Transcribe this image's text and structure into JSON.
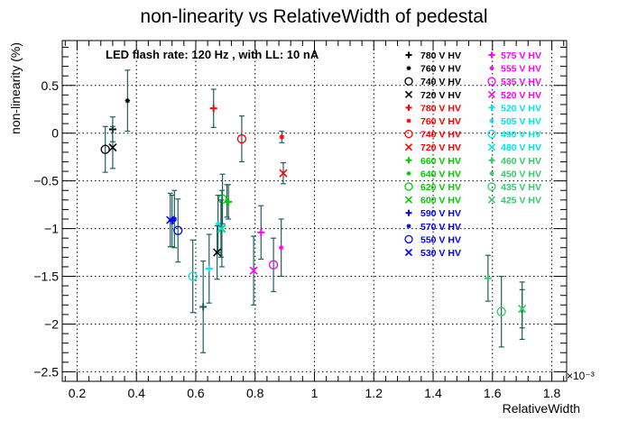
{
  "chart_data": {
    "type": "scatter",
    "title": "non-linearity vs RelativeWidth of pedestal",
    "xlabel": "RelativeWidth",
    "ylabel": "non-linearity (%)",
    "x_scale_label": "×10⁻³",
    "annotation": "LED flash rate: 120 Hz , with LL: 10 nA",
    "xlim": [
      0.15,
      1.85
    ],
    "ylim": [
      -2.6,
      0.97
    ],
    "x_ticks": [
      0.2,
      0.4,
      0.6,
      0.8,
      1.0,
      1.2,
      1.4,
      1.6,
      1.8
    ],
    "x_tick_labels": [
      "0.2",
      "0.4",
      "0.6",
      "0.8",
      "1",
      "1.2",
      "1.4",
      "1.6",
      "1.8"
    ],
    "y_ticks": [
      -2.5,
      -2,
      -1.5,
      -1,
      -0.5,
      0,
      0.5
    ],
    "y_tick_labels": [
      "−2.5",
      "−2",
      "−1.5",
      "−1",
      "−0.5",
      "0",
      "0.5"
    ],
    "grid": true,
    "legend_placement": "top-right",
    "error_bar_color": "#1f5f5a",
    "series": [
      {
        "name": "780 V HV",
        "color": "#000000",
        "marker": "plus",
        "x": 0.32,
        "y": 0.04,
        "yerr": 0.13
      },
      {
        "name": "760 V HV",
        "color": "#000000",
        "marker": "star",
        "x": 0.37,
        "y": 0.34,
        "yerr": 0.32
      },
      {
        "name": "740 V HV",
        "color": "#000000",
        "marker": "circle",
        "x": 0.295,
        "y": -0.17,
        "yerr": 0.24
      },
      {
        "name": "720 V HV",
        "color": "#000000",
        "marker": "cross",
        "x": 0.32,
        "y": -0.15,
        "yerr": 0.22
      },
      {
        "name": "780 V HV",
        "color": "#ff0000",
        "marker": "plus",
        "x": 0.66,
        "y": 0.26,
        "yerr": 0.2
      },
      {
        "name": "760 V HV",
        "color": "#ff0000",
        "marker": "star",
        "x": 0.89,
        "y": -0.04,
        "yerr": 0.06
      },
      {
        "name": "740 V HV",
        "color": "#ff0000",
        "marker": "circle",
        "x": 0.755,
        "y": -0.06,
        "yerr": 0.24
      },
      {
        "name": "720 V HV",
        "color": "#ff0000",
        "marker": "cross",
        "x": 0.895,
        "y": -0.42,
        "yerr": 0.11
      },
      {
        "name": "660 V HV",
        "color": "#00cc00",
        "marker": "plus",
        "x": 0.71,
        "y": -0.72,
        "yerr": 0.18
      },
      {
        "name": "640 V HV",
        "color": "#00cc00",
        "marker": "star",
        "x": 0.705,
        "y": -0.71,
        "yerr": 0.17
      },
      {
        "name": "620 V HV",
        "color": "#00cc00",
        "marker": "circle",
        "x": 0.69,
        "y": -0.69,
        "yerr": 0.26
      },
      {
        "name": "600 V HV",
        "color": "#00cc00",
        "marker": "cross",
        "x": 0.688,
        "y": -1.0,
        "yerr": 0.4
      },
      {
        "name": "590 V HV",
        "color": "#0000ff",
        "marker": "plus",
        "x": 0.52,
        "y": -0.92,
        "yerr": 0.27
      },
      {
        "name": "570 V HV",
        "color": "#0000ff",
        "marker": "star",
        "x": 0.528,
        "y": -0.9,
        "yerr": 0.3
      },
      {
        "name": "550 V HV",
        "color": "#0000ff",
        "marker": "circle",
        "x": 0.54,
        "y": -1.02,
        "yerr": 0.33
      },
      {
        "name": "530 V HV",
        "color": "#0000ff",
        "marker": "cross",
        "x": 0.514,
        "y": -0.91,
        "yerr": 0.28
      },
      {
        "name": "575 V HV",
        "color": "#ff00ff",
        "marker": "plus",
        "x": 0.82,
        "y": -1.04,
        "yerr": 0.28
      },
      {
        "name": "555 V HV",
        "color": "#ff00ff",
        "marker": "star",
        "x": 0.888,
        "y": -1.2,
        "yerr": 0.3
      },
      {
        "name": "535 V HV",
        "color": "#ff00ff",
        "marker": "circle",
        "x": 0.862,
        "y": -1.38,
        "yerr": 0.28
      },
      {
        "name": "520 V HV",
        "color": "#ff00ff",
        "marker": "cross",
        "x": 0.795,
        "y": -1.44,
        "yerr": 0.36
      },
      {
        "name": "520 V HV",
        "color": "#00e5e5",
        "marker": "plus",
        "x": 0.645,
        "y": -1.42,
        "yerr": 0.36
      },
      {
        "name": "505 V HV",
        "color": "#00e5e5",
        "marker": "star",
        "x": 0.675,
        "y": -0.95,
        "yerr": 0.3
      },
      {
        "name": "490 V HV",
        "color": "#00e5e5",
        "marker": "circle",
        "x": 0.59,
        "y": -1.5,
        "yerr": 0.38
      },
      {
        "name": "480 V HV",
        "color": "#00e5e5",
        "marker": "cross",
        "x": 0.685,
        "y": -1.0,
        "yerr": 0.3
      },
      {
        "name": "460 V HV",
        "color": "#33cc66",
        "marker": "plus",
        "x": 1.585,
        "y": -1.52,
        "yerr": 0.24
      },
      {
        "name": "450 V HV",
        "color": "#33cc66",
        "marker": "star",
        "x": 1.7,
        "y": -1.86,
        "yerr": 0.3
      },
      {
        "name": "435 V HV",
        "color": "#33cc66",
        "marker": "circle",
        "x": 1.63,
        "y": -1.87,
        "yerr": 0.37
      },
      {
        "name": "425 V HV",
        "color": "#33cc66",
        "marker": "cross",
        "x": 1.7,
        "y": -1.84,
        "yerr": 0.2
      }
    ],
    "extra_points": [
      {
        "color": "#000000",
        "marker": "cross",
        "x": 0.672,
        "y": -1.25,
        "yerr": 0.28
      },
      {
        "color": "#1f5f5a",
        "marker": "plus",
        "x": 0.625,
        "y": -1.82,
        "yerr": 0.48
      }
    ]
  }
}
